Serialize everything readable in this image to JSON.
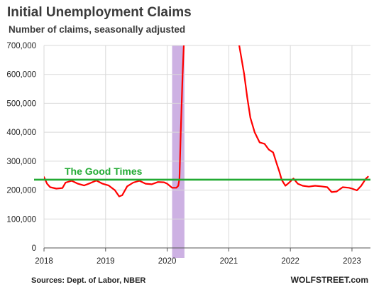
{
  "chart_data": {
    "type": "line",
    "title": "Initial Unemployment Claims",
    "subtitle": "Number of claims, seasonally adjusted",
    "xlabel": "",
    "ylabel": "",
    "xlim": [
      2018.0,
      2023.3
    ],
    "ylim": [
      0,
      700000
    ],
    "x_ticks": [
      "2018",
      "2019",
      "2020",
      "2021",
      "2022",
      "2023"
    ],
    "y_ticks": [
      "0",
      "100,000",
      "200,000",
      "300,000",
      "400,000",
      "500,000",
      "600,000",
      "700,000"
    ],
    "grid": true,
    "legend": "none",
    "series": [
      {
        "color": "#ff0000",
        "x": [
          2018.0,
          2018.05,
          2018.1,
          2018.2,
          2018.3,
          2018.35,
          2018.45,
          2018.55,
          2018.65,
          2018.75,
          2018.85,
          2018.95,
          2019.05,
          2019.15,
          2019.22,
          2019.27,
          2019.35,
          2019.45,
          2019.55,
          2019.65,
          2019.75,
          2019.85,
          2019.95,
          2020.0,
          2020.08,
          2020.15,
          2020.18,
          2020.2,
          2020.22,
          2020.25,
          2020.27,
          2020.28
        ],
        "y": [
          245000,
          222000,
          210000,
          205000,
          207000,
          226000,
          232000,
          222000,
          216000,
          224000,
          233000,
          222000,
          216000,
          200000,
          178000,
          182000,
          213000,
          226000,
          232000,
          222000,
          220000,
          228000,
          227000,
          222000,
          208000,
          208000,
          215000,
          240000,
          400000,
          600000,
          700000,
          720000
        ]
      },
      {
        "color": "#ff0000",
        "x": [
          2021.15,
          2021.17,
          2021.25,
          2021.3,
          2021.35,
          2021.42,
          2021.5,
          2021.58,
          2021.65,
          2021.72,
          2021.78,
          2021.82,
          2021.86,
          2021.92,
          2021.97,
          2022.05,
          2022.12,
          2022.2,
          2022.3,
          2022.4,
          2022.5,
          2022.6,
          2022.67,
          2022.75,
          2022.85,
          2022.95,
          2023.0,
          2023.08,
          2023.15,
          2023.22,
          2023.26
        ],
        "y": [
          720000,
          700000,
          600000,
          520000,
          450000,
          400000,
          365000,
          360000,
          340000,
          330000,
          290000,
          265000,
          235000,
          215000,
          224000,
          240000,
          222000,
          215000,
          212000,
          215000,
          213000,
          210000,
          193000,
          195000,
          210000,
          208000,
          205000,
          199000,
          215000,
          238000,
          246000
        ]
      }
    ],
    "reference_line": {
      "y": 236000,
      "color": "#22aa33",
      "label": "The Good Times"
    },
    "shaded_region": {
      "x": [
        2020.08,
        2020.28
      ],
      "color": "#c8a8e0"
    },
    "source": "Sources: Dept. of Labor, NBER",
    "brand": "WOLFSTREET.com"
  }
}
